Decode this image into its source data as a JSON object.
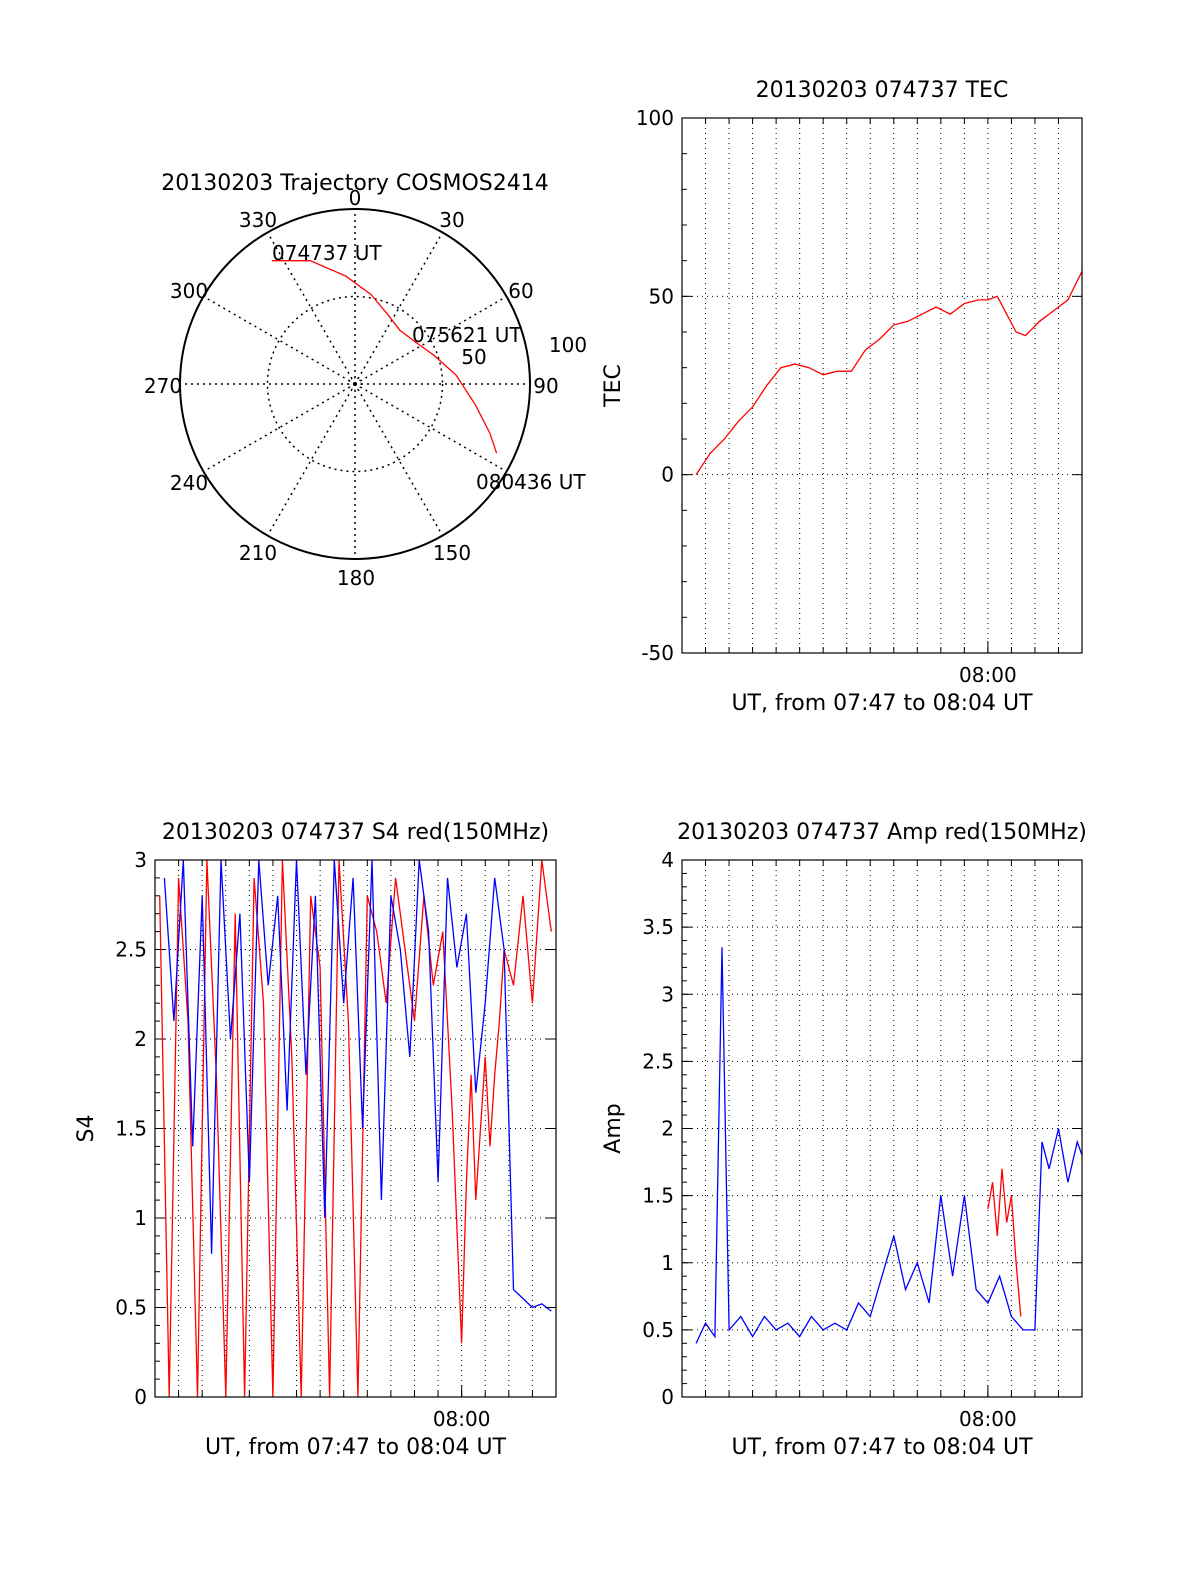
{
  "colors": {
    "red": "#ff0000",
    "blue": "#0000ff",
    "axis": "#000000",
    "grid": "#000000"
  },
  "chart_data": [
    {
      "type": "polar",
      "title": "20130203 Trajectory COSMOS2414",
      "angle_labels": [
        "0",
        "30",
        "60",
        "90",
        "150",
        "180",
        "210",
        "240",
        "270",
        "300",
        "330"
      ],
      "radius_labels": [
        "50",
        "100"
      ],
      "radius_max": 100,
      "trajectory": {
        "start_label": "074737 UT",
        "mid_label": "075621 UT",
        "end_label": "080436 UT",
        "points": [
          [
            326,
            85
          ],
          [
            340,
            75
          ],
          [
            355,
            62
          ],
          [
            10,
            52
          ],
          [
            25,
            44
          ],
          [
            40,
            40
          ],
          [
            55,
            42
          ],
          [
            70,
            48
          ],
          [
            85,
            58
          ],
          [
            100,
            70
          ],
          [
            110,
            82
          ],
          [
            116,
            90
          ]
        ]
      }
    },
    {
      "type": "line",
      "title": "20130203 074737 TEC",
      "ylabel": "TEC",
      "xlabel": "UT, from 07:47 to 08:04 UT",
      "xtick_label": "08:00",
      "ylim": [
        -50,
        100
      ],
      "yticks": [
        "-50",
        "0",
        "50",
        "100"
      ],
      "x_range_min": [
        47.0,
        64.0
      ],
      "series": [
        {
          "color": "red",
          "x": [
            47.6,
            48.2,
            48.8,
            49.4,
            50.0,
            50.6,
            51.2,
            51.8,
            52.4,
            53.0,
            53.6,
            54.2,
            54.8,
            55.4,
            56.0,
            56.6,
            57.2,
            57.8,
            58.4,
            59.0,
            59.6,
            60.0,
            60.4,
            60.8,
            61.2,
            61.6,
            62.2,
            62.8,
            63.4,
            63.7,
            64.0
          ],
          "y": [
            0,
            6,
            10,
            15,
            19,
            25,
            30,
            31,
            30,
            28,
            29,
            29,
            35,
            38,
            42,
            43,
            45,
            47,
            45,
            48,
            49,
            49,
            50,
            45,
            40,
            39,
            43,
            46,
            49,
            53,
            57
          ]
        }
      ]
    },
    {
      "type": "line",
      "title": "20130203 074737 S4 red(150MHz)",
      "ylabel": "S4",
      "xlabel": "UT, from 07:47 to 08:04 UT",
      "xtick_label": "08:00",
      "ylim": [
        0,
        3
      ],
      "yticks": [
        "0",
        "0.5",
        "1",
        "1.5",
        "2",
        "2.5",
        "3"
      ],
      "x_range_min": [
        47.0,
        64.0
      ],
      "series": [
        {
          "name_hidden": "red",
          "color": "red",
          "x": [
            47.2,
            47.6,
            48.0,
            48.4,
            48.8,
            49.2,
            49.6,
            50.0,
            50.4,
            50.8,
            51.2,
            51.6,
            52.0,
            52.4,
            52.8,
            53.2,
            53.6,
            54.0,
            54.4,
            54.8,
            55.2,
            55.6,
            56.0,
            56.4,
            56.8,
            57.2,
            57.6,
            58.0,
            58.4,
            58.8,
            59.2,
            59.6,
            60.0,
            60.2,
            60.4,
            60.6,
            60.8,
            61.0,
            61.2,
            61.4,
            61.6,
            61.8,
            62.2,
            62.6,
            63.0,
            63.4,
            63.8
          ],
          "y": [
            2.8,
            0.0,
            2.9,
            2.1,
            0.0,
            3.0,
            1.8,
            0.0,
            2.7,
            0.0,
            2.9,
            2.2,
            0.0,
            3.0,
            1.9,
            0.0,
            2.8,
            2.4,
            0.0,
            3.0,
            2.1,
            0.0,
            2.8,
            2.6,
            2.2,
            2.9,
            2.5,
            2.1,
            2.8,
            2.3,
            2.6,
            1.6,
            0.3,
            1.2,
            1.8,
            1.1,
            1.5,
            1.9,
            1.4,
            1.8,
            2.1,
            2.5,
            2.3,
            2.8,
            2.2,
            3.0,
            2.6
          ]
        },
        {
          "name_hidden": "blue",
          "color": "blue",
          "x": [
            47.4,
            47.8,
            48.2,
            48.6,
            49.0,
            49.4,
            49.8,
            50.2,
            50.6,
            51.0,
            51.4,
            51.8,
            52.2,
            52.6,
            53.0,
            53.4,
            53.8,
            54.2,
            54.6,
            55.0,
            55.4,
            55.8,
            56.2,
            56.6,
            57.0,
            57.4,
            57.8,
            58.2,
            58.6,
            59.0,
            59.4,
            59.8,
            60.2,
            60.6,
            61.0,
            61.4,
            61.8,
            62.2,
            62.6,
            63.0,
            63.4,
            63.8
          ],
          "y": [
            2.9,
            2.1,
            3.0,
            1.4,
            2.8,
            0.8,
            3.0,
            2.0,
            2.7,
            1.2,
            3.0,
            2.3,
            2.8,
            1.6,
            3.0,
            1.8,
            2.8,
            1.0,
            3.0,
            2.2,
            2.9,
            1.5,
            3.0,
            1.1,
            2.8,
            2.5,
            1.9,
            3.0,
            2.6,
            1.2,
            2.9,
            2.4,
            2.7,
            1.7,
            2.2,
            2.9,
            2.5,
            0.6,
            0.55,
            0.5,
            0.52,
            0.48
          ]
        }
      ]
    },
    {
      "type": "line",
      "title": "20130203 074737 Amp red(150MHz)",
      "ylabel": "Amp",
      "xlabel": "UT, from 07:47 to 08:04 UT",
      "xtick_label": "08:00",
      "ylim": [
        0,
        4
      ],
      "yticks": [
        "0",
        "0.5",
        "1",
        "1.5",
        "2",
        "2.5",
        "3",
        "3.5",
        "4"
      ],
      "x_range_min": [
        47.0,
        64.0
      ],
      "series": [
        {
          "name_hidden": "blue",
          "color": "blue",
          "x": [
            47.6,
            48.0,
            48.4,
            48.7,
            49.0,
            49.5,
            50.0,
            50.5,
            51.0,
            51.5,
            52.0,
            52.5,
            53.0,
            53.5,
            54.0,
            54.5,
            55.0,
            55.5,
            56.0,
            56.5,
            57.0,
            57.5,
            58.0,
            58.5,
            59.0,
            59.5,
            60.0,
            60.5,
            61.0,
            61.5,
            62.0,
            62.3,
            62.6,
            63.0,
            63.4,
            63.8,
            64.0
          ],
          "y": [
            0.4,
            0.55,
            0.45,
            3.35,
            0.5,
            0.6,
            0.45,
            0.6,
            0.5,
            0.55,
            0.45,
            0.6,
            0.5,
            0.55,
            0.5,
            0.7,
            0.6,
            0.9,
            1.2,
            0.8,
            1.0,
            0.7,
            1.5,
            0.9,
            1.5,
            0.8,
            0.7,
            0.9,
            0.6,
            0.5,
            0.5,
            1.9,
            1.7,
            2.0,
            1.6,
            1.9,
            1.8
          ]
        },
        {
          "name_hidden": "red",
          "color": "red",
          "x": [
            60.0,
            60.2,
            60.4,
            60.6,
            60.8,
            61.0,
            61.2,
            61.4
          ],
          "y": [
            1.4,
            1.6,
            1.2,
            1.7,
            1.3,
            1.5,
            1.0,
            0.6
          ]
        }
      ]
    }
  ]
}
